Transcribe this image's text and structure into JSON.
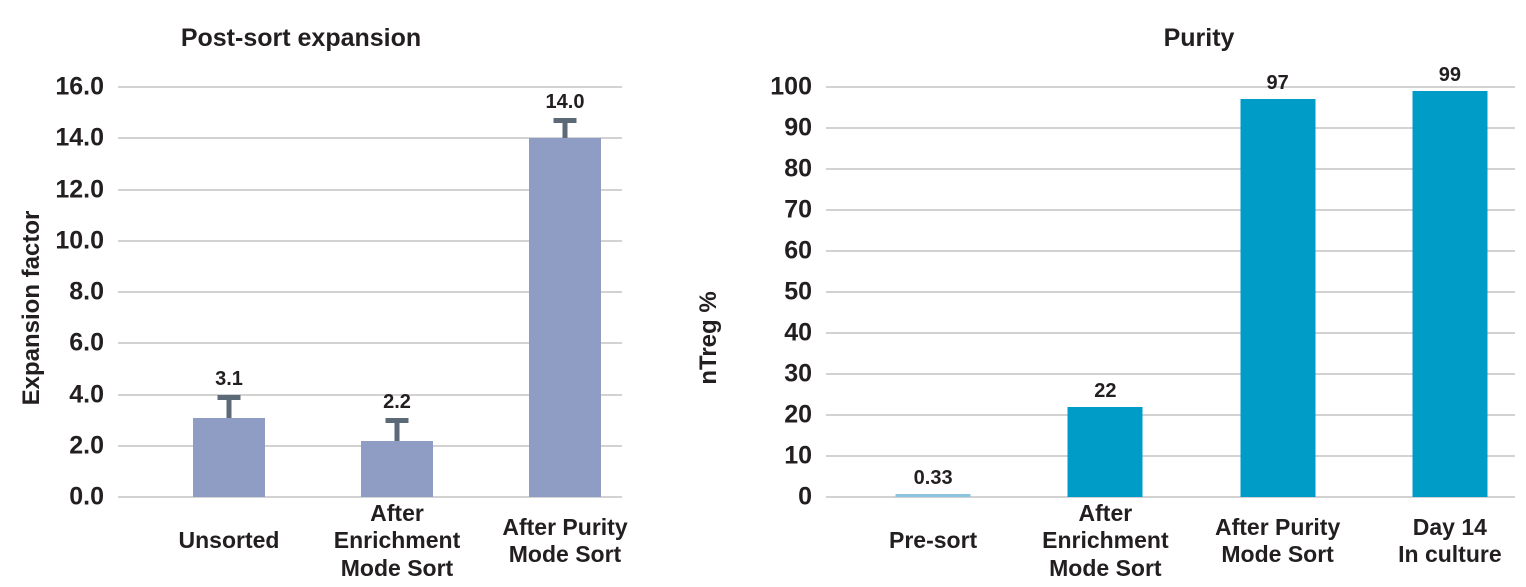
{
  "figure": {
    "background": "#FFFFFF",
    "text_color": "#231F20",
    "grid_color": "#D2D2D2"
  },
  "chart_data": [
    {
      "type": "bar",
      "title": "Post-sort expansion",
      "ylabel": "Expansion factor",
      "xlabel": "",
      "categories": [
        "Unsorted",
        "After\nEnrichment\nMode Sort",
        "After Purity\nMode Sort"
      ],
      "values": [
        3.1,
        2.2,
        14.0
      ],
      "value_labels": [
        "3.1",
        "2.2",
        "14.0"
      ],
      "error_upper": [
        0.9,
        0.9,
        0.8
      ],
      "ylim": [
        0,
        16
      ],
      "ytick_step": 2,
      "ytick_labels": [
        "0.0",
        "2.0",
        "4.0",
        "6.0",
        "8.0",
        "10.0",
        "12.0",
        "14.0",
        "16.0"
      ],
      "grid": true,
      "legend": false,
      "bar_color": "#8F9CC4",
      "error_color": "#5B6A76"
    },
    {
      "type": "bar",
      "title": "Purity",
      "ylabel": "nTreg %",
      "xlabel": "",
      "categories": [
        "Pre-sort",
        "After\nEnrichment\nMode Sort",
        "After Purity\nMode Sort",
        "Day 14\nIn culture"
      ],
      "values": [
        0.33,
        22,
        97,
        99
      ],
      "value_labels": [
        "0.33",
        "22",
        "97",
        "99"
      ],
      "ylim": [
        0,
        100
      ],
      "ytick_step": 10,
      "ytick_labels": [
        "0",
        "10",
        "20",
        "30",
        "40",
        "50",
        "60",
        "70",
        "80",
        "90",
        "100"
      ],
      "grid": true,
      "legend": false,
      "bar_color": "#009CC8",
      "bar_colors": [
        "#8CC5E0",
        "#009CC8",
        "#009CC8",
        "#009CC8"
      ]
    }
  ]
}
